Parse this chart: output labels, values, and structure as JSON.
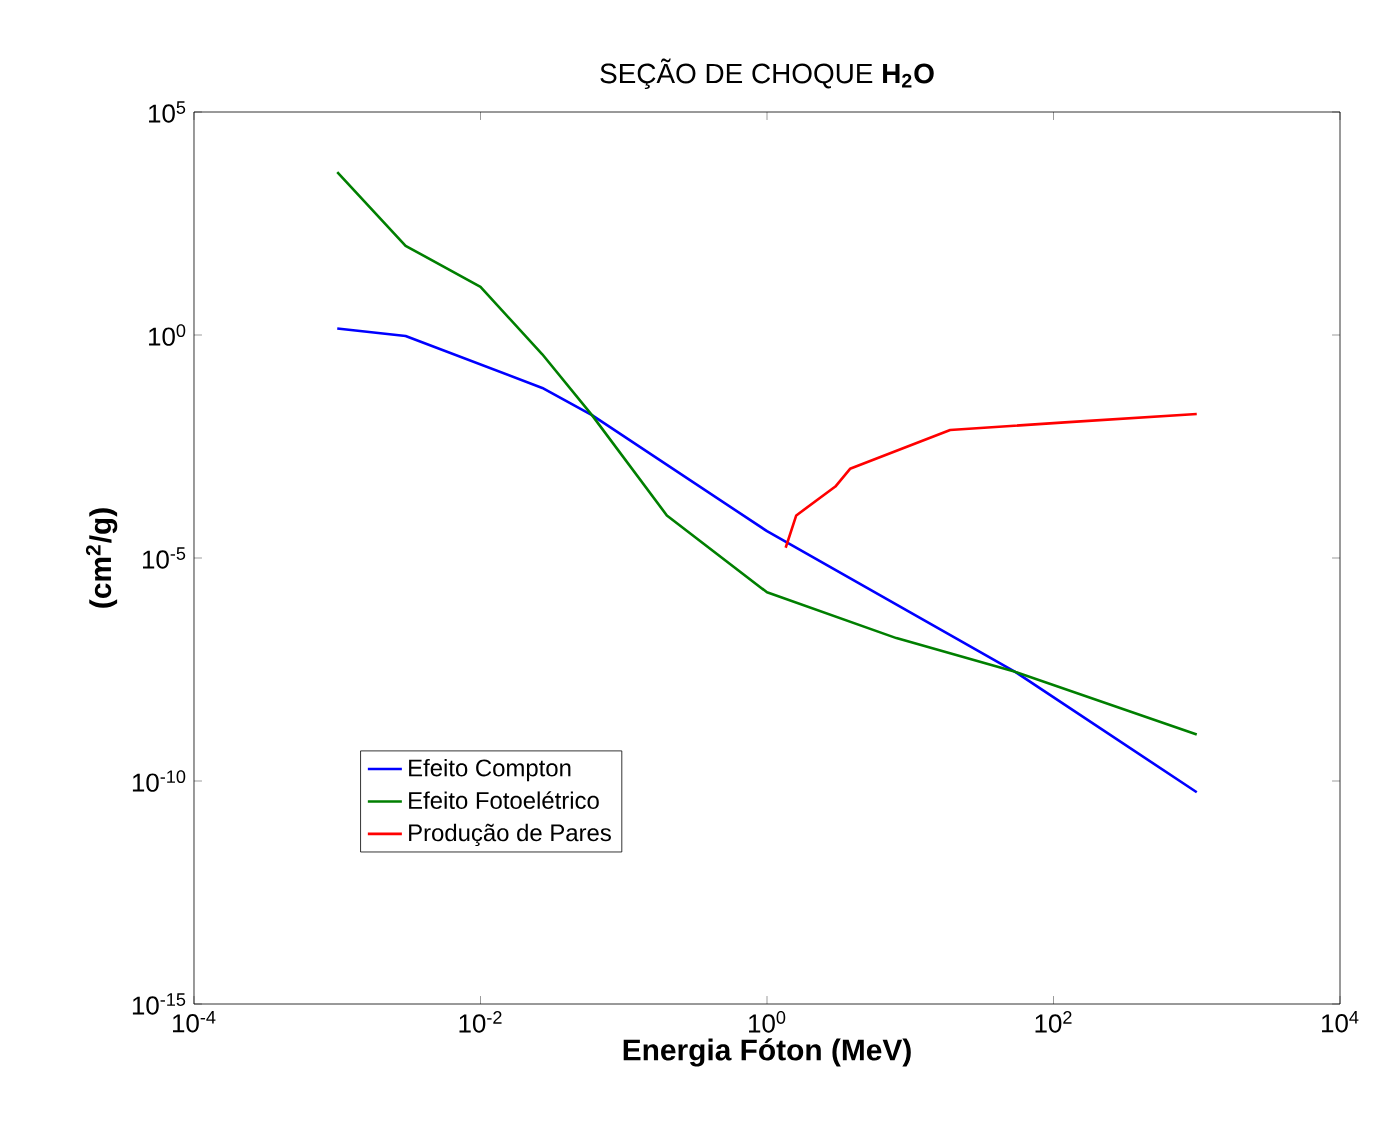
{
  "chart_data": {
    "type": "line",
    "title": "SEÇÃO DE CHOQUE **H$_{2}$O**",
    "xlabel": "Energia Fóton (MeV)",
    "ylabel": "(cm$^{2}$/g)",
    "log": "xy",
    "xlim": [
      0.0001,
      10000
    ],
    "ylim": [
      1e-15,
      100000
    ],
    "xticks": [
      {
        "value": 0.0001,
        "label": "10$^{-4}$"
      },
      {
        "value": 0.01,
        "label": "10$^{-2}$"
      },
      {
        "value": 1,
        "label": "10$^{0}$"
      },
      {
        "value": 100,
        "label": "10$^{2}$"
      },
      {
        "value": 10000,
        "label": "10$^{4}$"
      }
    ],
    "yticks": [
      {
        "value": 1e-15,
        "label": "10$^{-15}$"
      },
      {
        "value": 1e-10,
        "label": "10$^{-10}$"
      },
      {
        "value": 1e-05,
        "label": "10$^{-5}$"
      },
      {
        "value": 1,
        "label": "10$^{0}$"
      },
      {
        "value": 100000,
        "label": "10$^{5}$"
      }
    ],
    "legend": "bottom left",
    "grid": false,
    "line_style": "solid",
    "series": [
      {
        "name": "Efeito Compton",
        "color": "#0000ff",
        "x": [
          0.001,
          0.003,
          0.027,
          0.06,
          1,
          54,
          1000
        ],
        "values": [
          1.4,
          0.95,
          0.065,
          0.016,
          4e-05,
          2.8e-08,
          5.6e-11
        ]
      },
      {
        "name": "Efeito Fotoelétrico",
        "color": "#007f00",
        "x": [
          0.001,
          0.003,
          0.01,
          0.027,
          0.06,
          0.2,
          1,
          8,
          54,
          1000
        ],
        "values": [
          4500,
          100,
          12,
          0.37,
          0.016,
          9e-05,
          1.7e-06,
          1.6e-07,
          2.8e-08,
          1.1e-09
        ]
      },
      {
        "name": "Produção de Pares",
        "color": "#ff0000",
        "x": [
          1.35,
          1.6,
          3.0,
          3.8,
          19,
          120,
          1000
        ],
        "values": [
          1.7e-05,
          9e-05,
          0.0004,
          0.001,
          0.0074,
          0.011,
          0.017
        ]
      }
    ]
  }
}
